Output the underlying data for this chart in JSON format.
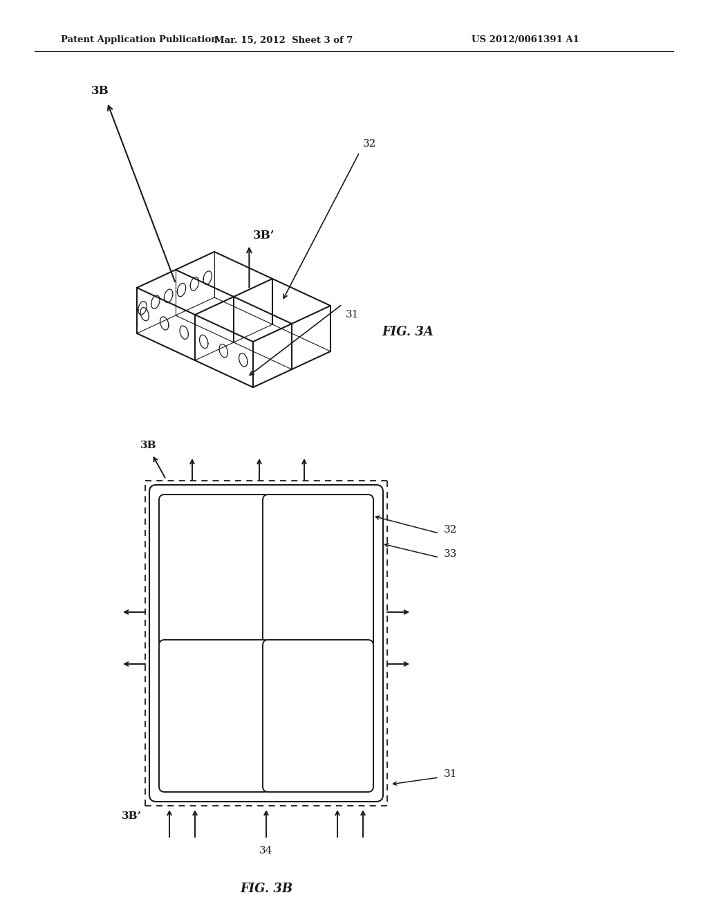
{
  "background_color": "#ffffff",
  "header_left": "Patent Application Publication",
  "header_middle": "Mar. 15, 2012  Sheet 3 of 7",
  "header_right": "US 2012/0061391 A1",
  "fig3a_label": "FIG. 3A",
  "fig3b_label": "FIG. 3B",
  "line_color": "#1a1a1a",
  "line_width": 1.5
}
